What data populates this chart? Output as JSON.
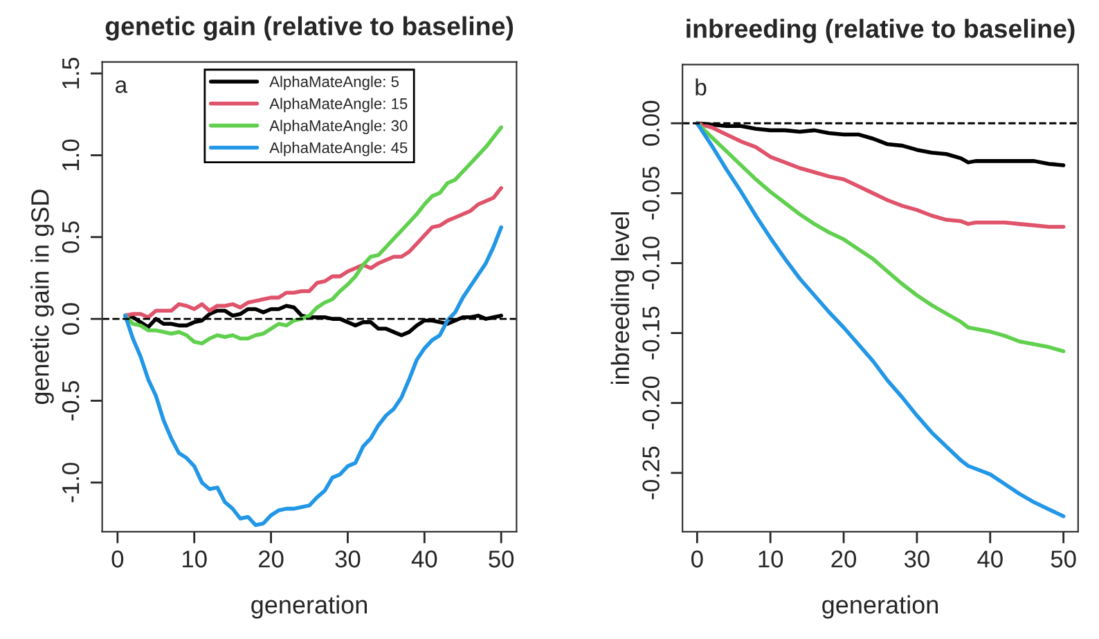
{
  "chart_data": [
    {
      "type": "line",
      "title": "genetic gain (relative to baseline)",
      "xlabel": "generation",
      "ylabel": "genetic gain in gSD",
      "xlim": [
        -2,
        52
      ],
      "xticks": [
        0,
        10,
        20,
        30,
        40,
        50
      ],
      "ylim": [
        -1.3,
        1.57
      ],
      "yticks": [
        {
          "value": -1.0,
          "label": "-1.0"
        },
        {
          "value": -0.5,
          "label": "-0.5"
        },
        {
          "value": 0.0,
          "label": "0.0"
        },
        {
          "value": 0.5,
          "label": "0.5"
        },
        {
          "value": 1.0,
          "label": "1.0"
        },
        {
          "value": 1.5,
          "label": "1.5"
        }
      ],
      "x": [
        1,
        2,
        3,
        4,
        5,
        6,
        7,
        8,
        9,
        10,
        11,
        12,
        13,
        14,
        15,
        16,
        17,
        18,
        19,
        20,
        21,
        22,
        23,
        24,
        25,
        26,
        27,
        28,
        29,
        30,
        31,
        32,
        33,
        34,
        35,
        36,
        37,
        38,
        39,
        40,
        41,
        42,
        43,
        44,
        45,
        46,
        47,
        48,
        49,
        50
      ],
      "series": [
        {
          "name": "AlphaMateAngle: 5",
          "color": "#000000",
          "values": [
            0.02,
            0.01,
            -0.02,
            -0.05,
            0.0,
            -0.03,
            -0.03,
            -0.04,
            -0.04,
            -0.02,
            -0.01,
            0.03,
            0.05,
            0.05,
            0.02,
            0.03,
            0.06,
            0.06,
            0.04,
            0.06,
            0.06,
            0.08,
            0.07,
            0.02,
            0.01,
            0.01,
            0.01,
            0.0,
            0.0,
            -0.02,
            -0.04,
            -0.02,
            -0.02,
            -0.06,
            -0.06,
            -0.08,
            -0.1,
            -0.08,
            -0.04,
            -0.01,
            -0.01,
            -0.02,
            -0.03,
            -0.01,
            0.01,
            0.01,
            0.02,
            0.0,
            0.01,
            0.02
          ]
        },
        {
          "name": "AlphaMateAngle: 15",
          "color": "#df536b",
          "values": [
            0.02,
            0.03,
            0.03,
            0.01,
            0.05,
            0.05,
            0.05,
            0.09,
            0.08,
            0.06,
            0.09,
            0.05,
            0.08,
            0.08,
            0.09,
            0.07,
            0.1,
            0.11,
            0.12,
            0.13,
            0.13,
            0.16,
            0.16,
            0.17,
            0.17,
            0.22,
            0.23,
            0.26,
            0.26,
            0.29,
            0.31,
            0.33,
            0.31,
            0.34,
            0.36,
            0.38,
            0.38,
            0.41,
            0.46,
            0.51,
            0.56,
            0.57,
            0.6,
            0.62,
            0.64,
            0.66,
            0.7,
            0.72,
            0.74,
            0.8
          ]
        },
        {
          "name": "AlphaMateAngle: 30",
          "color": "#61d04f",
          "values": [
            0.02,
            -0.03,
            -0.04,
            -0.07,
            -0.07,
            -0.08,
            -0.09,
            -0.08,
            -0.1,
            -0.14,
            -0.15,
            -0.12,
            -0.1,
            -0.11,
            -0.1,
            -0.12,
            -0.12,
            -0.1,
            -0.09,
            -0.06,
            -0.03,
            -0.04,
            -0.01,
            0.0,
            0.02,
            0.07,
            0.1,
            0.12,
            0.17,
            0.21,
            0.26,
            0.33,
            0.38,
            0.39,
            0.44,
            0.49,
            0.54,
            0.59,
            0.64,
            0.7,
            0.75,
            0.77,
            0.83,
            0.85,
            0.9,
            0.95,
            1.0,
            1.05,
            1.11,
            1.17
          ]
        },
        {
          "name": "AlphaMateAngle: 45",
          "color": "#2297e6",
          "values": [
            0.02,
            -0.12,
            -0.23,
            -0.37,
            -0.47,
            -0.62,
            -0.73,
            -0.82,
            -0.85,
            -0.9,
            -1.0,
            -1.04,
            -1.03,
            -1.12,
            -1.16,
            -1.22,
            -1.21,
            -1.26,
            -1.25,
            -1.2,
            -1.17,
            -1.16,
            -1.16,
            -1.15,
            -1.14,
            -1.09,
            -1.05,
            -0.97,
            -0.95,
            -0.9,
            -0.88,
            -0.78,
            -0.73,
            -0.65,
            -0.59,
            -0.55,
            -0.48,
            -0.37,
            -0.25,
            -0.18,
            -0.13,
            -0.1,
            -0.01,
            0.04,
            0.13,
            0.2,
            0.27,
            0.34,
            0.44,
            0.56
          ]
        }
      ],
      "ref_lines": [
        {
          "axis": "y",
          "value": 0,
          "color": "#000000",
          "line_style": "dashed"
        }
      ],
      "annotations": [
        "a"
      ],
      "legend": "top",
      "grid": false
    },
    {
      "type": "line",
      "title": "inbreeding (relative to baseline)",
      "xlabel": "generation",
      "ylabel": "inbreeding level",
      "xlim": [
        -2,
        52
      ],
      "xticks": [
        0,
        10,
        20,
        30,
        40,
        50
      ],
      "ylim": [
        -0.292,
        0.042
      ],
      "yticks": [
        {
          "value": -0.25,
          "label": "-0.25"
        },
        {
          "value": -0.2,
          "label": "-0.20"
        },
        {
          "value": -0.15,
          "label": "-0.15"
        },
        {
          "value": -0.1,
          "label": "-0.10"
        },
        {
          "value": -0.05,
          "label": "-0.05"
        },
        {
          "value": 0.0,
          "label": "0.00"
        }
      ],
      "x": [
        0,
        2,
        4,
        6,
        8,
        10,
        12,
        14,
        16,
        18,
        20,
        22,
        24,
        26,
        28,
        30,
        32,
        34,
        36,
        37,
        38,
        40,
        42,
        44,
        46,
        48,
        50
      ],
      "series": [
        {
          "color": "#000000",
          "values": [
            0,
            -0.001,
            -0.002,
            -0.002,
            -0.004,
            -0.005,
            -0.005,
            -0.006,
            -0.005,
            -0.007,
            -0.008,
            -0.008,
            -0.011,
            -0.015,
            -0.016,
            -0.019,
            -0.021,
            -0.022,
            -0.025,
            -0.028,
            -0.027,
            -0.027,
            -0.027,
            -0.027,
            -0.027,
            -0.029,
            -0.03
          ]
        },
        {
          "color": "#df536b",
          "values": [
            0,
            -0.003,
            -0.008,
            -0.013,
            -0.017,
            -0.024,
            -0.028,
            -0.032,
            -0.035,
            -0.038,
            -0.04,
            -0.045,
            -0.05,
            -0.055,
            -0.059,
            -0.062,
            -0.066,
            -0.069,
            -0.07,
            -0.072,
            -0.071,
            -0.071,
            -0.071,
            -0.072,
            -0.073,
            -0.074,
            -0.074
          ]
        },
        {
          "color": "#61d04f",
          "values": [
            0,
            -0.01,
            -0.02,
            -0.03,
            -0.04,
            -0.049,
            -0.057,
            -0.065,
            -0.072,
            -0.078,
            -0.083,
            -0.09,
            -0.097,
            -0.106,
            -0.115,
            -0.123,
            -0.13,
            -0.136,
            -0.142,
            -0.146,
            -0.147,
            -0.149,
            -0.152,
            -0.156,
            -0.158,
            -0.16,
            -0.163
          ]
        },
        {
          "color": "#2297e6",
          "values": [
            0,
            -0.016,
            -0.033,
            -0.049,
            -0.066,
            -0.082,
            -0.097,
            -0.111,
            -0.123,
            -0.135,
            -0.146,
            -0.158,
            -0.17,
            -0.184,
            -0.196,
            -0.209,
            -0.221,
            -0.231,
            -0.241,
            -0.245,
            -0.247,
            -0.251,
            -0.258,
            -0.265,
            -0.271,
            -0.276,
            -0.281
          ]
        }
      ],
      "ref_lines": [
        {
          "axis": "y",
          "value": 0,
          "color": "#000000",
          "line_style": "dashed"
        }
      ],
      "annotations": [
        "b"
      ],
      "grid": false
    }
  ]
}
